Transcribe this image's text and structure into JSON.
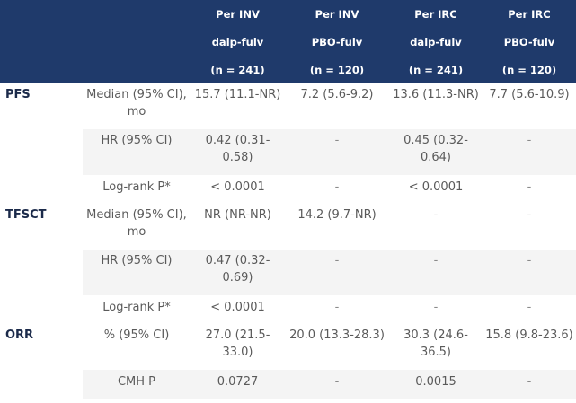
{
  "header": {
    "row1": [
      "",
      "",
      "Per INV",
      "Per INV",
      "Per IRC",
      "Per IRC"
    ],
    "row2": [
      "",
      "",
      "dalp-fulv",
      "PBO-fulv",
      "dalp-fulv",
      "PBO-fulv"
    ],
    "row3": [
      "",
      "",
      "(n = 241)",
      "(n = 120)",
      "(n = 241)",
      "(n = 120)"
    ]
  },
  "rows": [
    {
      "endpoint": "PFS",
      "metric": "Median (95% CI), mo",
      "values": [
        "15.7 (11.1-NR)",
        "7.2 (5.6-9.2)",
        "13.6 (11.3-NR)",
        "7.7 (5.6-10.9)"
      ]
    },
    {
      "endpoint": "",
      "metric": "HR (95% CI)",
      "values": [
        "0.42 (0.31-0.58)",
        "-",
        "0.45 (0.32-0.64)",
        "-"
      ]
    },
    {
      "endpoint": "",
      "metric": "Log-rank P*",
      "values": [
        "< 0.0001",
        "-",
        "< 0.0001",
        "-"
      ]
    },
    {
      "endpoint": "TFSCT",
      "metric": "Median (95% CI), mo",
      "values": [
        "NR (NR-NR)",
        "14.2 (9.7-NR)",
        "-",
        "-"
      ]
    },
    {
      "endpoint": "",
      "metric": "HR (95% CI)",
      "values": [
        "0.47 (0.32-0.69)",
        "-",
        "-",
        "-"
      ]
    },
    {
      "endpoint": "",
      "metric": "Log-rank P*",
      "values": [
        "< 0.0001",
        "-",
        "-",
        "-"
      ]
    },
    {
      "endpoint": "ORR",
      "metric": "% (95% CI)",
      "values": [
        "27.0 (21.5-33.0)",
        "20.0 (13.3-28.3)",
        "30.3 (24.6-36.5)",
        "15.8 (9.8-23.6)"
      ]
    },
    {
      "endpoint": "",
      "metric": "CMH P",
      "values": [
        "0.0727",
        "-",
        "0.0015",
        "-"
      ]
    }
  ],
  "colors": {
    "header_bg": "#1f3a6b",
    "shade_bg": "#f4f4f4"
  }
}
